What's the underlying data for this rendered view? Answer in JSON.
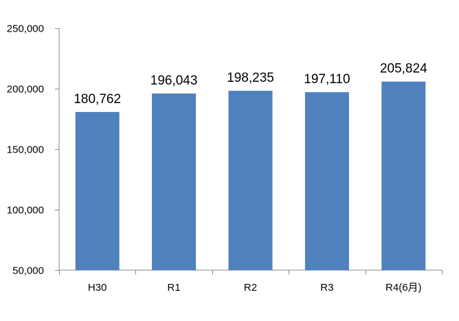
{
  "chart_data": {
    "type": "bar",
    "categories": [
      "H30",
      "R1",
      "R2",
      "R3",
      "R4(6月)"
    ],
    "values": [
      180762,
      196043,
      198235,
      197110,
      205824
    ],
    "data_labels": [
      "180,762",
      "196,043",
      "198,235",
      "197,110",
      "205,824"
    ],
    "ylim": [
      50000,
      250000
    ],
    "yticks": [
      50000,
      100000,
      150000,
      200000,
      250000
    ],
    "ytick_labels": [
      "50,000",
      "100,000",
      "150,000",
      "200,000",
      "250,000"
    ],
    "title": "",
    "xlabel": "",
    "ylabel": "",
    "grid": false,
    "legend": "none",
    "bar_color": "#4f81bd",
    "axis_color": "#868686"
  }
}
